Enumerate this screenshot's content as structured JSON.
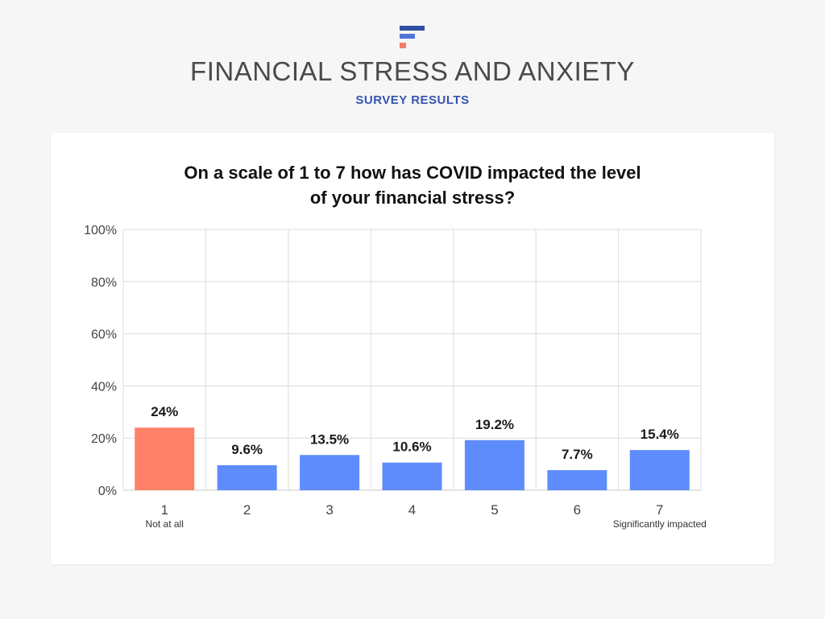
{
  "header": {
    "title": "FINANCIAL STRESS AND ANXIETY",
    "subtitle": "SURVEY RESULTS",
    "logo_colors": [
      "#2f4fa2",
      "#4f74d9",
      "#f47d67"
    ]
  },
  "colors": {
    "highlight_bar": "#fe8167",
    "bar": "#5f8cfc",
    "grid": "#dcdcdc",
    "axis_text": "#444444"
  },
  "chart_data": {
    "type": "bar",
    "title_line1": "On a scale of 1 to 7 how has COVID impacted the level",
    "title_line2": "of your financial stress?",
    "categories": [
      "1",
      "2",
      "3",
      "4",
      "5",
      "6",
      "7"
    ],
    "category_sublabels": [
      "Not at all",
      "",
      "",
      "",
      "",
      "",
      "Significantly impacted"
    ],
    "values": [
      24,
      9.6,
      13.5,
      10.6,
      19.2,
      7.7,
      15.4
    ],
    "value_labels": [
      "24%",
      "9.6%",
      "13.5%",
      "10.6%",
      "19.2%",
      "7.7%",
      "15.4%"
    ],
    "highlight_index": 0,
    "ylim": [
      0,
      100
    ],
    "yticks": [
      0,
      20,
      40,
      60,
      80,
      100
    ],
    "ytick_labels": [
      "0%",
      "20%",
      "40%",
      "60%",
      "80%",
      "100%"
    ],
    "grid": true,
    "xlabel": "",
    "ylabel": ""
  }
}
